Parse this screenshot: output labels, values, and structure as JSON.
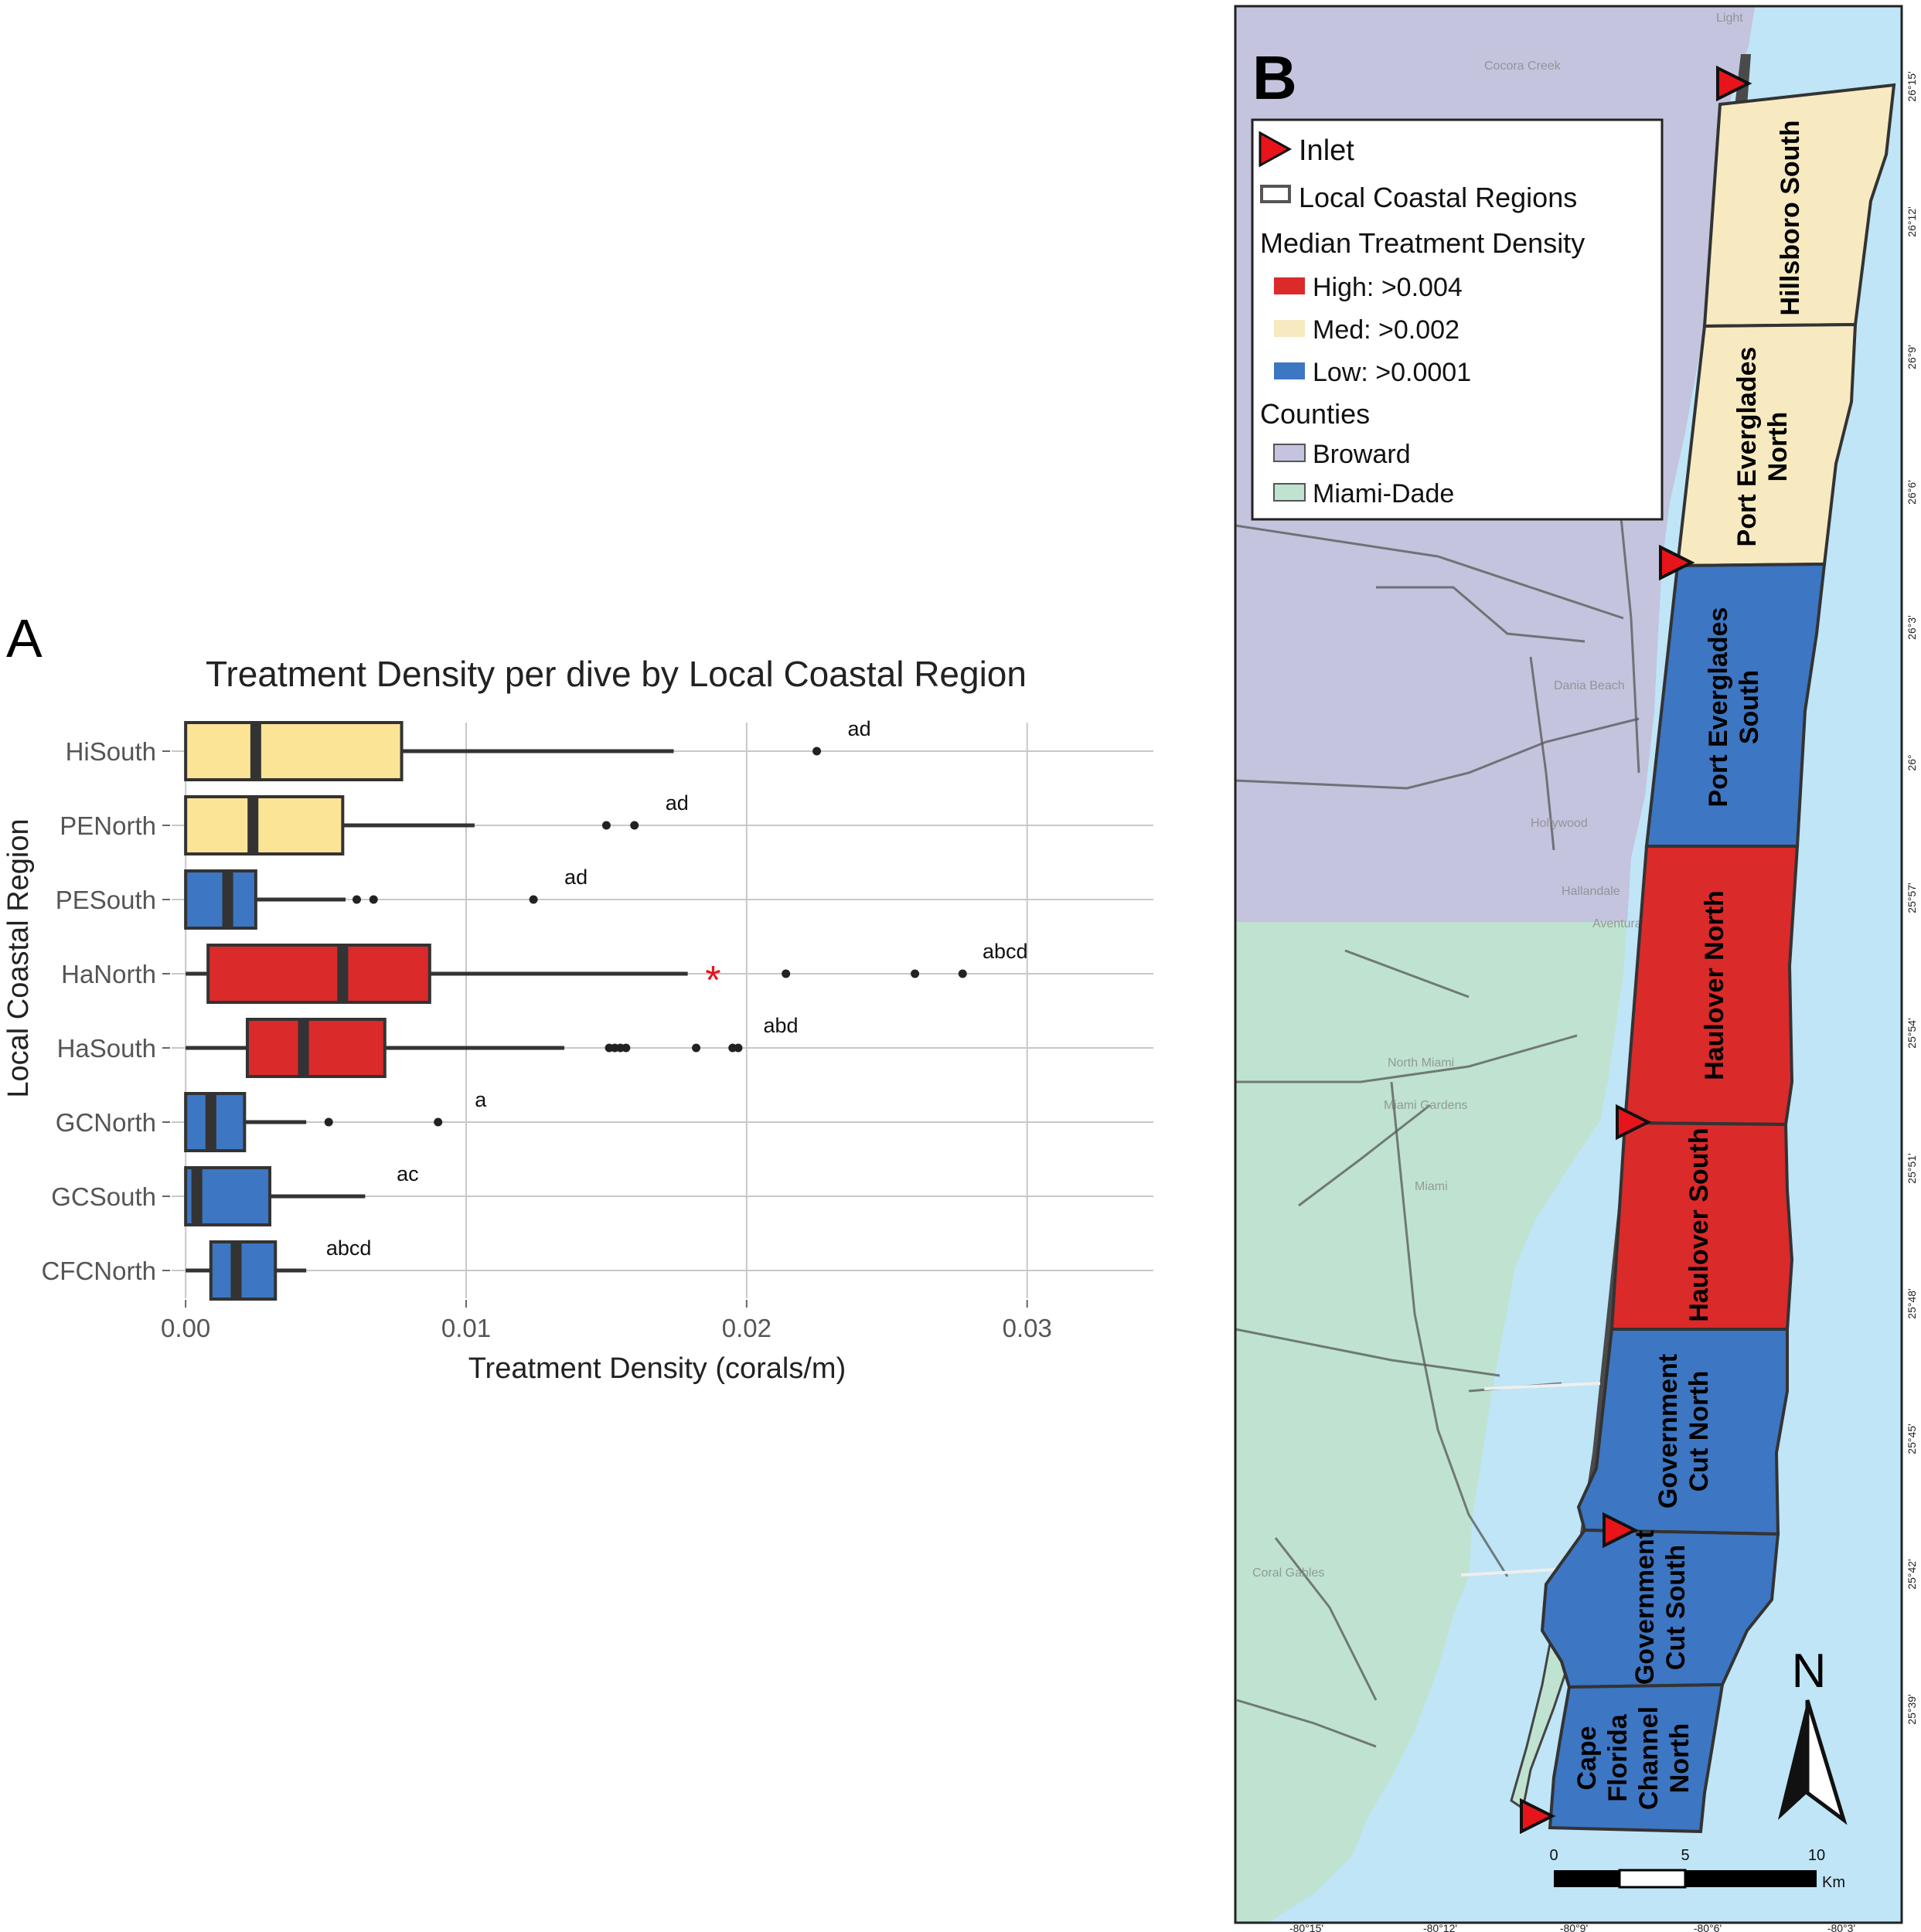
{
  "panel_a": {
    "label": "A",
    "chart_data": {
      "type": "boxplot",
      "orientation": "horizontal",
      "title": "Treatment Density per dive by Local Coastal Region",
      "xlabel": "Treatment Density (corals/m)",
      "ylabel": "Local Coastal Region",
      "xlim": [
        -0.0005,
        0.0345
      ],
      "xticks": [
        0.0,
        0.01,
        0.02,
        0.03
      ],
      "xtick_labels": [
        "0.00",
        "0.01",
        "0.02",
        "0.03"
      ],
      "grid": true,
      "categories": [
        "HiSouth",
        "PENorth",
        "PESouth",
        "HaNorth",
        "HaSouth",
        "GCNorth",
        "GCSouth",
        "CFCNorth"
      ],
      "series": [
        {
          "category": "HiSouth",
          "min": 0.0,
          "q1": 0.0,
          "median": 0.0025,
          "q3": 0.0077,
          "max": 0.0174,
          "outliers": [
            0.0225
          ],
          "letters": "ad",
          "density_class": "Med"
        },
        {
          "category": "PENorth",
          "min": 0.0,
          "q1": 0.0,
          "median": 0.0024,
          "q3": 0.0056,
          "max": 0.0103,
          "outliers": [
            0.015,
            0.016
          ],
          "letters": "ad",
          "density_class": "Med"
        },
        {
          "category": "PESouth",
          "min": 0.0,
          "q1": 0.0,
          "median": 0.0015,
          "q3": 0.0025,
          "max": 0.0057,
          "outliers": [
            0.0061,
            0.0067,
            0.0124
          ],
          "letters": "ad",
          "density_class": "Low"
        },
        {
          "category": "HaNorth",
          "min": 0.0,
          "q1": 0.0008,
          "median": 0.0056,
          "q3": 0.0087,
          "max": 0.0179,
          "outliers": [
            0.0214,
            0.026,
            0.0277
          ],
          "letters": "abcd",
          "density_class": "High",
          "significance_marker": "*",
          "significance_x": 0.0188
        },
        {
          "category": "HaSouth",
          "min": 0.0,
          "q1": 0.0022,
          "median": 0.0042,
          "q3": 0.0071,
          "max": 0.0135,
          "outliers": [
            0.0151,
            0.0153,
            0.0155,
            0.0157,
            0.0182,
            0.0195,
            0.0197
          ],
          "letters": "abd",
          "density_class": "High"
        },
        {
          "category": "GCNorth",
          "min": 0.0,
          "q1": 0.0,
          "median": 0.0009,
          "q3": 0.0021,
          "max": 0.0043,
          "outliers": [
            0.0051,
            0.009
          ],
          "letters": "a",
          "density_class": "Low"
        },
        {
          "category": "GCSouth",
          "min": 0.0,
          "q1": 0.0,
          "median": 0.0004,
          "q3": 0.003,
          "max": 0.0064,
          "outliers": [],
          "letters": "ac",
          "density_class": "Low"
        },
        {
          "category": "CFCNorth",
          "min": 0.0,
          "q1": 0.0009,
          "median": 0.0018,
          "q3": 0.0032,
          "max": 0.0043,
          "outliers": [],
          "letters": "abcd",
          "density_class": "Low"
        }
      ]
    }
  },
  "panel_b": {
    "label": "B",
    "legend": {
      "inlet": "Inlet",
      "regions": "Local Coastal Regions",
      "density_header": "Median Treatment Density",
      "high": "High: >0.004",
      "med": "Med: >0.002",
      "low": "Low: >0.0001",
      "counties_header": "Counties",
      "broward": "Broward",
      "miami_dade": "Miami-Dade"
    },
    "regions": [
      {
        "name_lines": [
          "Hillsboro South"
        ],
        "density_class": "Med"
      },
      {
        "name_lines": [
          "Port Everglades",
          "North"
        ],
        "density_class": "Med"
      },
      {
        "name_lines": [
          "Port Everglades",
          "South"
        ],
        "density_class": "Low"
      },
      {
        "name_lines": [
          "Haulover North"
        ],
        "density_class": "High"
      },
      {
        "name_lines": [
          "Haulover South"
        ],
        "density_class": "High"
      },
      {
        "name_lines": [
          "Government",
          "Cut North"
        ],
        "density_class": "Low"
      },
      {
        "name_lines": [
          "Government",
          "Cut South"
        ],
        "density_class": "Low"
      },
      {
        "name_lines": [
          "Cape",
          "Florida",
          "Channel",
          "North"
        ],
        "density_class": "Low"
      }
    ],
    "inlet_count": 5,
    "lat_labels": [
      "26°15'",
      "26°12'",
      "26°9'",
      "26°6'",
      "26°3'",
      "26°",
      "25°57'",
      "25°54'",
      "25°51'",
      "25°48'",
      "25°45'",
      "25°42'",
      "25°39'"
    ],
    "lon_labels": [
      "-80°15'",
      "-80°12'",
      "-80°9'",
      "-80°6'",
      "-80°3'"
    ],
    "scale_bar": {
      "ticks": [
        "0",
        "5",
        "10"
      ],
      "unit": "Km"
    },
    "north_label": "N",
    "basemap_labels": [
      "Cocora Creek",
      "Light",
      "Dania Beach",
      "Hollywood",
      "Hallandale",
      "Aventura",
      "North Miami",
      "Miami Gardens",
      "Miami",
      "Coral Gables"
    ]
  },
  "colors": {
    "high": "#da2a2a",
    "med": "#fce497",
    "low": "#3d76c2",
    "med_map": "#f7eac0",
    "broward": "#c4c4de",
    "miami_dade": "#bfe3d0",
    "water": "#bfe5f7",
    "grid": "#c8c8c8",
    "outline": "#333333",
    "inlet": "#e8141b"
  }
}
